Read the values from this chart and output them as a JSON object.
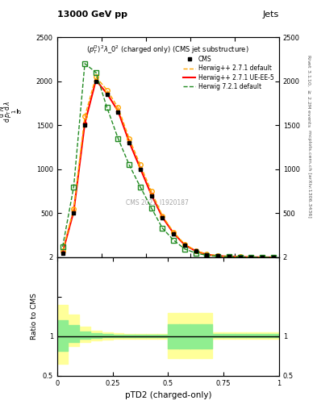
{
  "title_top": "13000 GeV pp",
  "title_right": "Jets",
  "plot_title": "$(p_T^{D})^2\\lambda\\_0^2$ (charged only) (CMS jet substructure)",
  "ylabel_main": "$\\frac{1}{\\sigma}\\frac{d\\sigma}{d\\lambda}$",
  "ylabel_ratio": "Ratio to CMS",
  "xlabel": "pTD2 (charged-only)",
  "right_label_top": "Rivet 3.1.10, $\\geq$ 2.2M events",
  "right_label_bot": "mcplots.cern.ch [arXiv:1306.3436]",
  "x_bins": [
    0.0,
    0.05,
    0.1,
    0.15,
    0.2,
    0.25,
    0.3,
    0.35,
    0.4,
    0.45,
    0.5,
    0.55,
    0.6,
    0.65,
    0.7,
    0.75,
    0.8,
    0.85,
    0.9,
    0.95,
    1.0
  ],
  "cms_x": [
    0.025,
    0.075,
    0.125,
    0.175,
    0.225,
    0.275,
    0.325,
    0.375,
    0.425,
    0.475,
    0.525,
    0.575,
    0.625,
    0.675,
    0.725,
    0.775,
    0.825,
    0.875,
    0.925,
    0.975
  ],
  "cms_y": [
    50,
    500,
    1500,
    2000,
    1850,
    1650,
    1300,
    1000,
    700,
    450,
    270,
    140,
    70,
    30,
    15,
    8,
    4,
    2,
    1,
    0.5
  ],
  "herwig_default_x": [
    0.025,
    0.075,
    0.125,
    0.175,
    0.225,
    0.275,
    0.325,
    0.375,
    0.425,
    0.475,
    0.525,
    0.575,
    0.625,
    0.675,
    0.725,
    0.775,
    0.825,
    0.875,
    0.925,
    0.975
  ],
  "herwig_default_y": [
    70,
    550,
    1600,
    2050,
    1900,
    1700,
    1350,
    1050,
    750,
    470,
    285,
    150,
    75,
    35,
    17,
    9,
    5,
    2.5,
    1.2,
    0.6
  ],
  "herwig_ueee5_x": [
    0.025,
    0.075,
    0.125,
    0.175,
    0.225,
    0.275,
    0.325,
    0.375,
    0.425,
    0.475,
    0.525,
    0.575,
    0.625,
    0.675,
    0.725,
    0.775,
    0.825,
    0.875,
    0.925,
    0.975
  ],
  "herwig_ueee5_y": [
    55,
    520,
    1520,
    2010,
    1860,
    1660,
    1310,
    1010,
    710,
    455,
    273,
    142,
    71,
    31,
    16,
    8.5,
    4.2,
    2.1,
    1.1,
    0.55
  ],
  "herwig721_x": [
    0.025,
    0.075,
    0.125,
    0.175,
    0.225,
    0.275,
    0.325,
    0.375,
    0.425,
    0.475,
    0.525,
    0.575,
    0.625,
    0.675,
    0.725,
    0.775,
    0.825,
    0.875,
    0.925,
    0.975
  ],
  "herwig721_y": [
    120,
    800,
    2200,
    2100,
    1700,
    1350,
    1050,
    800,
    560,
    330,
    195,
    95,
    48,
    22,
    11,
    6,
    3,
    1.5,
    0.8,
    0.4
  ],
  "ratio_yellow_lo": [
    0.65,
    0.88,
    0.93,
    0.95,
    0.96,
    0.97,
    0.97,
    0.97,
    0.97,
    0.97,
    0.72,
    0.72,
    0.72,
    0.72,
    0.97,
    0.97,
    0.97,
    0.97,
    0.97,
    0.97
  ],
  "ratio_yellow_hi": [
    1.4,
    1.27,
    1.12,
    1.07,
    1.05,
    1.04,
    1.03,
    1.03,
    1.03,
    1.03,
    1.3,
    1.3,
    1.3,
    1.3,
    1.05,
    1.05,
    1.05,
    1.05,
    1.05,
    1.05
  ],
  "ratio_green_lo": [
    0.82,
    0.93,
    0.97,
    0.98,
    0.99,
    0.99,
    0.99,
    0.99,
    0.99,
    0.99,
    0.85,
    0.85,
    0.85,
    0.85,
    0.99,
    0.99,
    0.99,
    0.99,
    0.99,
    0.99
  ],
  "ratio_green_hi": [
    1.2,
    1.14,
    1.06,
    1.04,
    1.03,
    1.02,
    1.02,
    1.02,
    1.02,
    1.02,
    1.15,
    1.15,
    1.15,
    1.15,
    1.03,
    1.03,
    1.03,
    1.03,
    1.03,
    1.03
  ],
  "cms_color": "#000000",
  "herwig_default_color": "#FFA500",
  "herwig_ueee5_color": "#FF0000",
  "herwig721_color": "#228B22",
  "yellow_band_color": "#FFFF99",
  "green_band_color": "#90EE90",
  "ylim_main": [
    0,
    2500
  ],
  "ylim_ratio": [
    0.5,
    2.0
  ],
  "xlim": [
    0.0,
    1.0
  ],
  "yticks_main": [
    0,
    500,
    1000,
    1500,
    2000,
    2500
  ],
  "ytick_labels_main": [
    "",
    "500",
    "1000",
    "1500",
    "2000",
    "2500"
  ]
}
